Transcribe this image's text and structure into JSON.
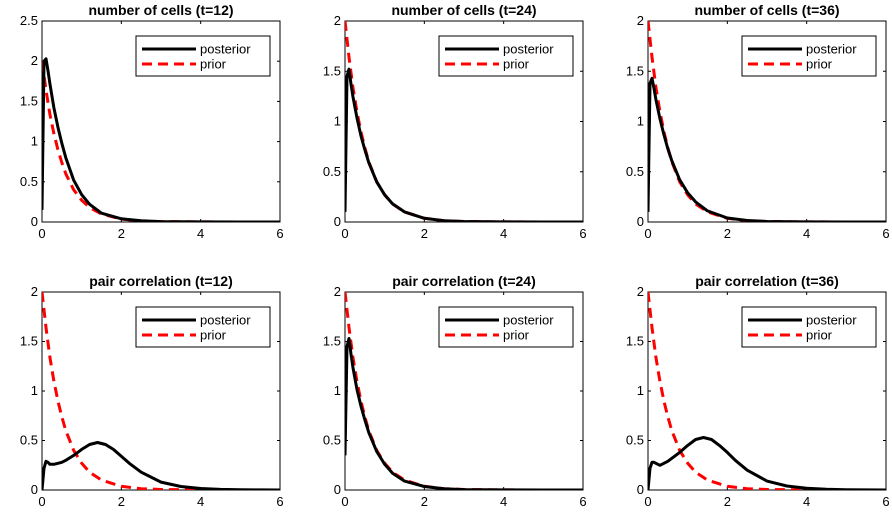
{
  "chart_data": [
    {
      "type": "line",
      "title": "number of cells (t=12)",
      "xlim": [
        0,
        6
      ],
      "ylim": [
        0,
        2.5
      ],
      "xticks": [
        0,
        2,
        4,
        6
      ],
      "yticks": [
        0,
        0.5,
        1,
        1.5,
        2,
        2.5
      ],
      "xtick_labels": [
        "0",
        "2",
        "4",
        "6"
      ],
      "ytick_labels": [
        "0",
        "0.5",
        "1",
        "1.5",
        "2",
        "2.5"
      ],
      "legend_placement": "top-right",
      "series": [
        {
          "name": "posterior",
          "color": "#000000",
          "style": "solid",
          "x": [
            0,
            0.05,
            0.1,
            0.15,
            0.2,
            0.3,
            0.4,
            0.5,
            0.6,
            0.8,
            1.0,
            1.2,
            1.5,
            2.0,
            2.5,
            3.0,
            4.0,
            5.0,
            6.0
          ],
          "y": [
            0.15,
            2.0,
            2.03,
            1.88,
            1.72,
            1.42,
            1.18,
            0.98,
            0.8,
            0.52,
            0.34,
            0.22,
            0.11,
            0.04,
            0.015,
            0.005,
            0.001,
            0,
            0
          ]
        },
        {
          "name": "prior",
          "color": "#ff0000",
          "style": "dashed",
          "x": [
            0,
            0.1,
            0.2,
            0.3,
            0.4,
            0.5,
            0.6,
            0.8,
            1.0,
            1.2,
            1.5,
            2.0,
            2.5,
            3.0,
            4.0,
            5.0,
            6.0
          ],
          "y": [
            2.0,
            1.64,
            1.34,
            1.1,
            0.9,
            0.74,
            0.6,
            0.4,
            0.27,
            0.18,
            0.1,
            0.037,
            0.013,
            0.005,
            0.001,
            0,
            0
          ]
        }
      ]
    },
    {
      "type": "line",
      "title": "number of cells (t=24)",
      "xlim": [
        0,
        6
      ],
      "ylim": [
        0,
        2
      ],
      "xticks": [
        0,
        2,
        4,
        6
      ],
      "yticks": [
        0,
        0.5,
        1,
        1.5,
        2
      ],
      "xtick_labels": [
        "0",
        "2",
        "4",
        "6"
      ],
      "ytick_labels": [
        "0",
        "0.5",
        "1",
        "1.5",
        "2"
      ],
      "legend_placement": "top-right",
      "series": [
        {
          "name": "posterior",
          "color": "#000000",
          "style": "solid",
          "x": [
            0,
            0.05,
            0.1,
            0.15,
            0.2,
            0.3,
            0.4,
            0.5,
            0.6,
            0.8,
            1.0,
            1.2,
            1.5,
            2.0,
            2.5,
            3.0,
            4.0,
            5.0,
            6.0
          ],
          "y": [
            0.1,
            1.45,
            1.52,
            1.38,
            1.25,
            1.04,
            0.86,
            0.72,
            0.59,
            0.4,
            0.27,
            0.18,
            0.1,
            0.037,
            0.013,
            0.005,
            0.001,
            0,
            0
          ]
        },
        {
          "name": "prior",
          "color": "#ff0000",
          "style": "dashed",
          "x": [
            0,
            0.1,
            0.2,
            0.3,
            0.4,
            0.5,
            0.6,
            0.8,
            1.0,
            1.2,
            1.5,
            2.0,
            2.5,
            3.0,
            4.0,
            5.0,
            6.0
          ],
          "y": [
            2.0,
            1.64,
            1.34,
            1.1,
            0.9,
            0.74,
            0.6,
            0.4,
            0.27,
            0.18,
            0.1,
            0.037,
            0.013,
            0.005,
            0.001,
            0,
            0
          ]
        }
      ]
    },
    {
      "type": "line",
      "title": "number of cells (t=36)",
      "xlim": [
        0,
        6
      ],
      "ylim": [
        0,
        2
      ],
      "xticks": [
        0,
        2,
        4,
        6
      ],
      "yticks": [
        0,
        0.5,
        1,
        1.5,
        2
      ],
      "xtick_labels": [
        "0",
        "2",
        "4",
        "6"
      ],
      "ytick_labels": [
        "0",
        "0.5",
        "1",
        "1.5",
        "2"
      ],
      "legend_placement": "top-right",
      "series": [
        {
          "name": "posterior",
          "color": "#000000",
          "style": "solid",
          "x": [
            0,
            0.05,
            0.1,
            0.15,
            0.2,
            0.3,
            0.4,
            0.5,
            0.6,
            0.8,
            1.0,
            1.2,
            1.5,
            2.0,
            2.5,
            3.0,
            4.0,
            5.0,
            6.0
          ],
          "y": [
            0.1,
            1.38,
            1.43,
            1.33,
            1.22,
            1.03,
            0.87,
            0.73,
            0.61,
            0.42,
            0.29,
            0.2,
            0.11,
            0.04,
            0.015,
            0.005,
            0.001,
            0,
            0
          ]
        },
        {
          "name": "prior",
          "color": "#ff0000",
          "style": "dashed",
          "x": [
            0,
            0.1,
            0.2,
            0.3,
            0.4,
            0.5,
            0.6,
            0.8,
            1.0,
            1.2,
            1.5,
            2.0,
            2.5,
            3.0,
            4.0,
            5.0,
            6.0
          ],
          "y": [
            2.0,
            1.64,
            1.34,
            1.1,
            0.9,
            0.74,
            0.6,
            0.4,
            0.27,
            0.18,
            0.1,
            0.037,
            0.013,
            0.005,
            0.001,
            0,
            0
          ]
        }
      ]
    },
    {
      "type": "line",
      "title": "pair correlation (t=12)",
      "xlim": [
        0,
        6
      ],
      "ylim": [
        0,
        2
      ],
      "xticks": [
        0,
        2,
        4,
        6
      ],
      "yticks": [
        0,
        0.5,
        1,
        1.5,
        2
      ],
      "xtick_labels": [
        "0",
        "2",
        "4",
        "6"
      ],
      "ytick_labels": [
        "0",
        "0.5",
        "1",
        "1.5",
        "2"
      ],
      "legend_placement": "top-right",
      "series": [
        {
          "name": "posterior",
          "color": "#000000",
          "style": "solid",
          "x": [
            0,
            0.05,
            0.1,
            0.15,
            0.2,
            0.3,
            0.4,
            0.5,
            0.6,
            0.8,
            1.0,
            1.2,
            1.4,
            1.6,
            1.8,
            2.0,
            2.2,
            2.5,
            3.0,
            3.5,
            4.0,
            4.5,
            5.0,
            5.5,
            6.0
          ],
          "y": [
            0,
            0.22,
            0.29,
            0.28,
            0.26,
            0.26,
            0.27,
            0.28,
            0.3,
            0.35,
            0.41,
            0.46,
            0.48,
            0.46,
            0.41,
            0.34,
            0.27,
            0.18,
            0.08,
            0.035,
            0.015,
            0.006,
            0.002,
            0.001,
            0
          ]
        },
        {
          "name": "prior",
          "color": "#ff0000",
          "style": "dashed",
          "x": [
            0,
            0.1,
            0.2,
            0.3,
            0.4,
            0.5,
            0.6,
            0.8,
            1.0,
            1.2,
            1.5,
            2.0,
            2.5,
            3.0,
            4.0,
            5.0,
            6.0
          ],
          "y": [
            2.0,
            1.64,
            1.34,
            1.1,
            0.9,
            0.74,
            0.6,
            0.4,
            0.27,
            0.18,
            0.1,
            0.037,
            0.013,
            0.005,
            0.001,
            0,
            0
          ]
        }
      ]
    },
    {
      "type": "line",
      "title": "pair correlation (t=24)",
      "xlim": [
        0,
        6
      ],
      "ylim": [
        0,
        2
      ],
      "xticks": [
        0,
        2,
        4,
        6
      ],
      "yticks": [
        0,
        0.5,
        1,
        1.5,
        2
      ],
      "xtick_labels": [
        "0",
        "2",
        "4",
        "6"
      ],
      "ytick_labels": [
        "0",
        "0.5",
        "1",
        "1.5",
        "2"
      ],
      "legend_placement": "top-right",
      "series": [
        {
          "name": "posterior",
          "color": "#000000",
          "style": "solid",
          "x": [
            0,
            0.05,
            0.1,
            0.15,
            0.2,
            0.3,
            0.4,
            0.5,
            0.6,
            0.8,
            1.0,
            1.2,
            1.5,
            2.0,
            2.5,
            3.0,
            4.0,
            5.0,
            6.0
          ],
          "y": [
            0.35,
            1.45,
            1.53,
            1.38,
            1.24,
            1.02,
            0.85,
            0.71,
            0.58,
            0.39,
            0.26,
            0.17,
            0.09,
            0.035,
            0.012,
            0.004,
            0.001,
            0,
            0
          ]
        },
        {
          "name": "prior",
          "color": "#ff0000",
          "style": "dashed",
          "x": [
            0,
            0.1,
            0.2,
            0.3,
            0.4,
            0.5,
            0.6,
            0.8,
            1.0,
            1.2,
            1.5,
            2.0,
            2.5,
            3.0,
            4.0,
            5.0,
            6.0
          ],
          "y": [
            2.0,
            1.64,
            1.34,
            1.1,
            0.9,
            0.74,
            0.6,
            0.4,
            0.27,
            0.18,
            0.1,
            0.037,
            0.013,
            0.005,
            0.001,
            0,
            0
          ]
        }
      ]
    },
    {
      "type": "line",
      "title": "pair correlation (t=36)",
      "xlim": [
        0,
        6
      ],
      "ylim": [
        0,
        2
      ],
      "xticks": [
        0,
        2,
        4,
        6
      ],
      "yticks": [
        0,
        0.5,
        1,
        1.5,
        2
      ],
      "xtick_labels": [
        "0",
        "2",
        "4",
        "6"
      ],
      "ytick_labels": [
        "0",
        "0.5",
        "1",
        "1.5",
        "2"
      ],
      "legend_placement": "top-right",
      "series": [
        {
          "name": "posterior",
          "color": "#000000",
          "style": "solid",
          "x": [
            0,
            0.05,
            0.1,
            0.15,
            0.2,
            0.3,
            0.4,
            0.5,
            0.6,
            0.8,
            1.0,
            1.2,
            1.4,
            1.6,
            1.8,
            2.0,
            2.2,
            2.5,
            3.0,
            3.5,
            4.0,
            4.5,
            5.0,
            5.5,
            6.0
          ],
          "y": [
            0,
            0.22,
            0.28,
            0.28,
            0.27,
            0.25,
            0.27,
            0.29,
            0.32,
            0.38,
            0.45,
            0.51,
            0.53,
            0.51,
            0.45,
            0.38,
            0.3,
            0.2,
            0.09,
            0.04,
            0.017,
            0.007,
            0.003,
            0.001,
            0
          ]
        },
        {
          "name": "prior",
          "color": "#ff0000",
          "style": "dashed",
          "x": [
            0,
            0.1,
            0.2,
            0.3,
            0.4,
            0.5,
            0.6,
            0.8,
            1.0,
            1.2,
            1.5,
            2.0,
            2.5,
            3.0,
            4.0,
            5.0,
            6.0
          ],
          "y": [
            2.0,
            1.64,
            1.34,
            1.1,
            0.9,
            0.74,
            0.6,
            0.4,
            0.27,
            0.18,
            0.1,
            0.037,
            0.013,
            0.005,
            0.001,
            0,
            0
          ]
        }
      ]
    }
  ]
}
